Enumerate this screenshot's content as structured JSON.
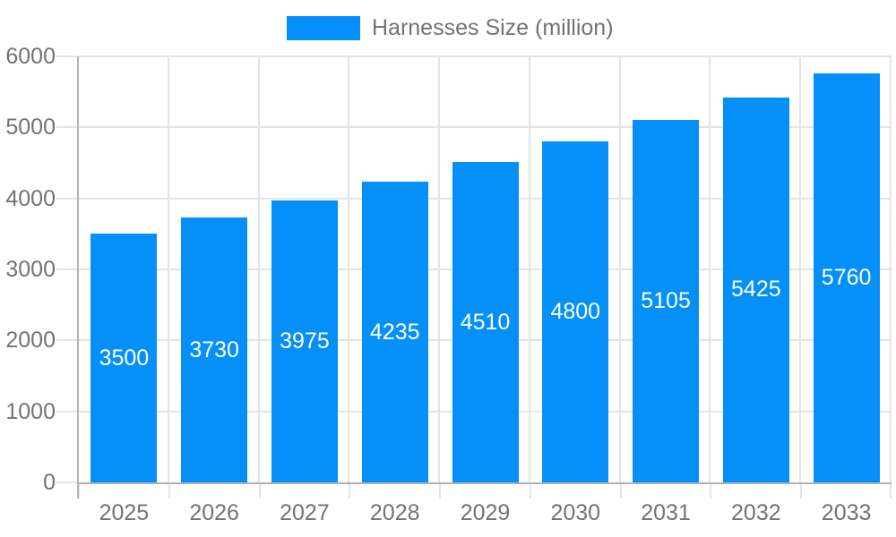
{
  "chart_data": {
    "type": "bar",
    "title": "Harnesses Size (million)",
    "categories": [
      "2025",
      "2026",
      "2027",
      "2028",
      "2029",
      "2030",
      "2031",
      "2032",
      "2033"
    ],
    "series": [
      {
        "name": "Harnesses Size (million)",
        "values": [
          3500,
          3730,
          3975,
          4235,
          4510,
          4800,
          5105,
          5425,
          5760
        ]
      }
    ],
    "bar_value_labels": [
      "3500",
      "3730",
      "3975",
      "4235",
      "4510",
      "4800",
      "5105",
      "5425",
      "5760"
    ],
    "xlabel": "",
    "ylabel": "",
    "ylim": [
      0,
      6000
    ],
    "yticks": [
      0,
      1000,
      2000,
      3000,
      4000,
      5000,
      6000
    ],
    "grid": true,
    "legend_position": "top",
    "colors": {
      "bar": "#0590f9",
      "bar_label": "#ffffff",
      "axis_text": "#737373",
      "gridline": "#e4e4e4",
      "axis_line": "#b2b2b2",
      "background": "#ffffff"
    }
  },
  "legend": {
    "label": "Harnesses Size (million)"
  }
}
